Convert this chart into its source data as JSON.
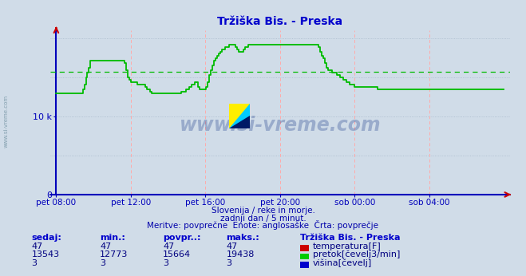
{
  "title": "Tržiška Bis. - Preska",
  "title_color": "#0000cc",
  "bg_color": "#d0dce8",
  "line_color": "#00bb00",
  "avg_line_color": "#00bb00",
  "avg_value": 15664,
  "ymax": 21000,
  "grid_color_h": "#aabbcc",
  "grid_color_v": "#ffaaaa",
  "watermark": "www.si-vreme.com",
  "watermark_color": "#1a3a8a",
  "sub_text1": "Slovenija / reke in morje.",
  "sub_text2": "zadnji dan / 5 minut.",
  "sub_text3": "Meritve: povprečne  Enote: anglosaške  Črta: povprečje",
  "sub_text_color": "#0000aa",
  "table_header_color": "#0000cc",
  "table_data_color": "#000080",
  "xtick_labels": [
    "pet 08:00",
    "pet 12:00",
    "pet 16:00",
    "pet 20:00",
    "sob 00:00",
    "sob 04:00"
  ],
  "xtick_positions": [
    0,
    240,
    480,
    720,
    960,
    1200
  ],
  "sedaj": {
    "temperatura": 47,
    "pretok": 13543,
    "visina": 3
  },
  "min_vals": {
    "temperatura": 47,
    "pretok": 12773,
    "visina": 3
  },
  "povpr": {
    "temperatura": 47,
    "pretok": 15664,
    "visina": 3
  },
  "maks": {
    "temperatura": 47,
    "pretok": 19438,
    "visina": 3
  },
  "temp_color": "#cc0000",
  "pretok_color": "#00cc00",
  "visina_color": "#0000cc",
  "sidebar_text": "www.si-vreme.com",
  "axis_color": "#0000bb",
  "arrow_color": "#cc0000"
}
